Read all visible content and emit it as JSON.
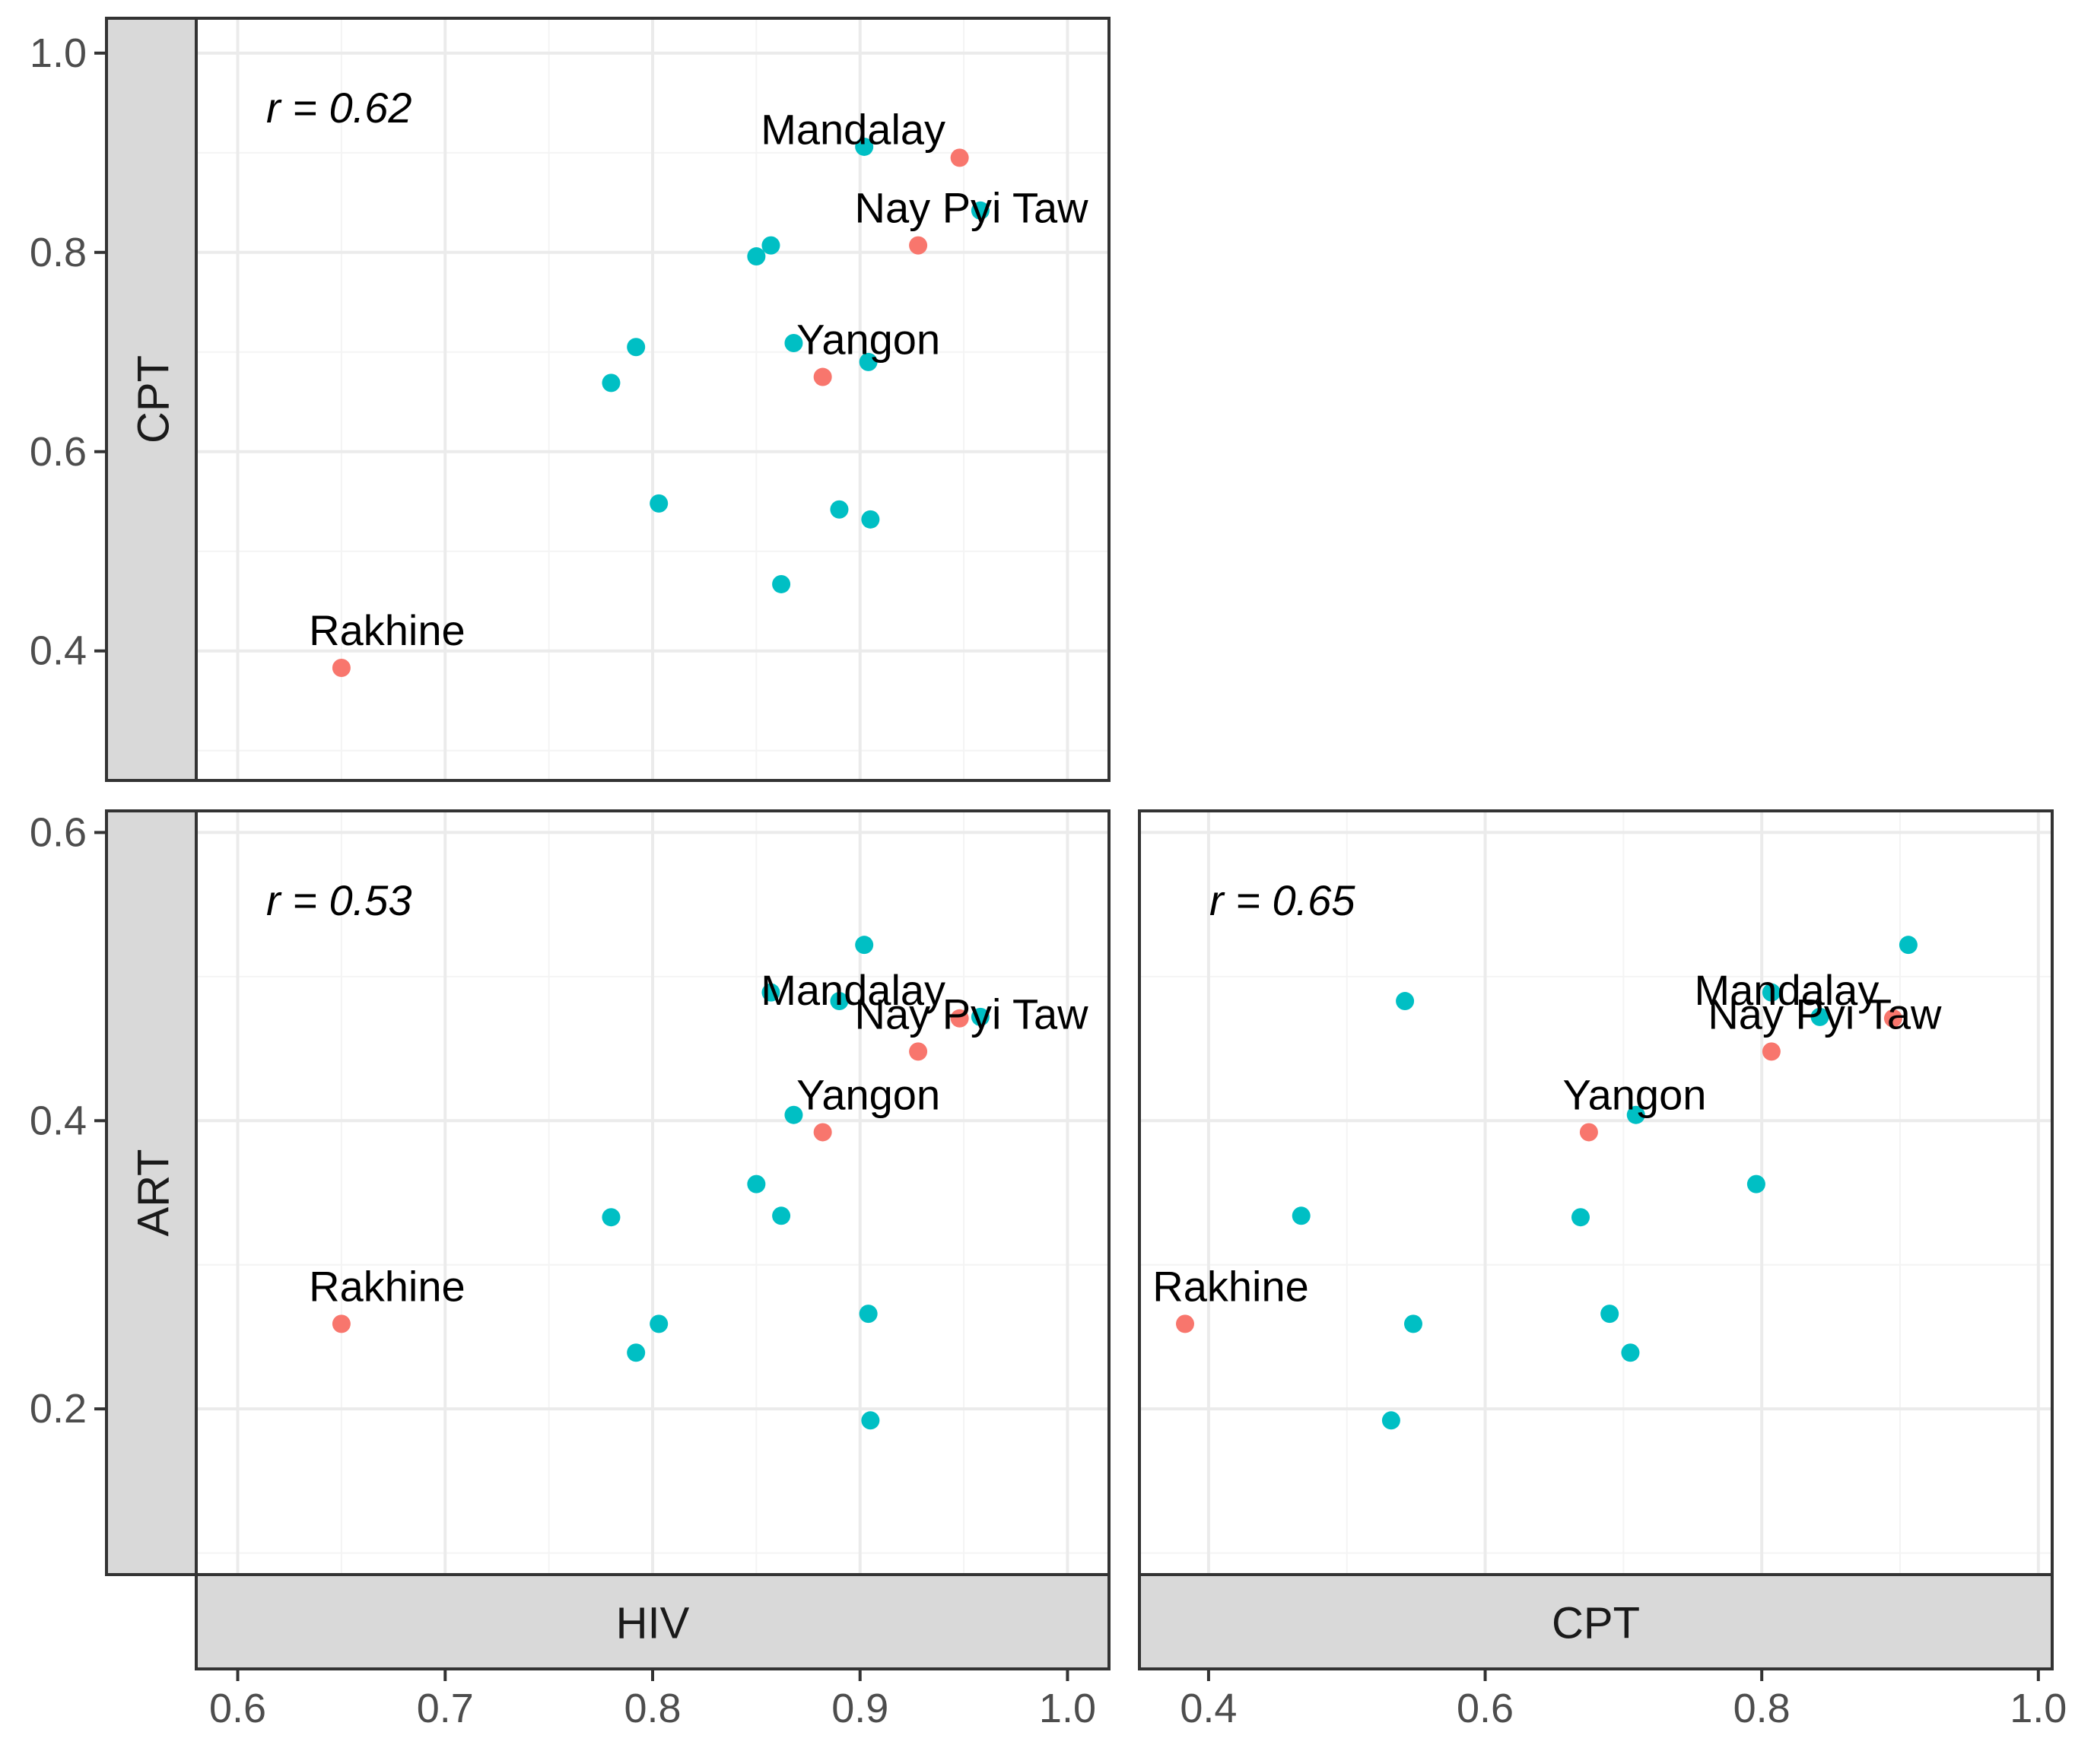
{
  "colors": {
    "labeled": "#F8766D",
    "unlabeled": "#00BFC4"
  },
  "strips": {
    "cpt_row": "CPT",
    "art_row": "ART",
    "hiv_col": "HIV",
    "cpt_col": "CPT"
  },
  "chart_data": [
    {
      "type": "scatter",
      "panel": "HIV vs CPT",
      "xlabel": "HIV",
      "ylabel": "CPT",
      "xlim": [
        0.58,
        1.02
      ],
      "ylim": [
        0.27,
        1.035
      ],
      "x_ticks": [
        "0.6",
        "0.7",
        "0.8",
        "0.9",
        "1.0"
      ],
      "y_ticks": [
        "0.4",
        "0.6",
        "0.8",
        "1.0"
      ],
      "annotation": "r = 0.62",
      "points": [
        {
          "x": 0.902,
          "y": 0.906,
          "group": "unlabeled"
        },
        {
          "x": 0.948,
          "y": 0.895,
          "group": "labeled",
          "label": "Mandalay"
        },
        {
          "x": 0.958,
          "y": 0.842,
          "group": "unlabeled"
        },
        {
          "x": 0.928,
          "y": 0.807,
          "group": "labeled",
          "label": "Nay Pyi Taw"
        },
        {
          "x": 0.857,
          "y": 0.807,
          "group": "unlabeled"
        },
        {
          "x": 0.85,
          "y": 0.796,
          "group": "unlabeled"
        },
        {
          "x": 0.868,
          "y": 0.709,
          "group": "unlabeled"
        },
        {
          "x": 0.904,
          "y": 0.69,
          "group": "unlabeled"
        },
        {
          "x": 0.882,
          "y": 0.675,
          "group": "labeled",
          "label": "Yangon"
        },
        {
          "x": 0.792,
          "y": 0.705,
          "group": "unlabeled"
        },
        {
          "x": 0.78,
          "y": 0.669,
          "group": "unlabeled"
        },
        {
          "x": 0.803,
          "y": 0.548,
          "group": "unlabeled"
        },
        {
          "x": 0.89,
          "y": 0.542,
          "group": "unlabeled"
        },
        {
          "x": 0.905,
          "y": 0.532,
          "group": "unlabeled"
        },
        {
          "x": 0.862,
          "y": 0.467,
          "group": "unlabeled"
        },
        {
          "x": 0.65,
          "y": 0.383,
          "group": "labeled",
          "label": "Rakhine"
        }
      ]
    },
    {
      "type": "scatter",
      "panel": "HIV vs ART",
      "xlabel": "HIV",
      "ylabel": "ART",
      "xlim": [
        0.58,
        1.02
      ],
      "ylim": [
        0.085,
        0.615
      ],
      "x_ticks": [
        "0.6",
        "0.7",
        "0.8",
        "0.9",
        "1.0"
      ],
      "y_ticks": [
        "0.2",
        "0.4",
        "0.6"
      ],
      "annotation": "r = 0.53",
      "points": [
        {
          "x": 0.902,
          "y": 0.522,
          "group": "unlabeled"
        },
        {
          "x": 0.857,
          "y": 0.489,
          "group": "unlabeled"
        },
        {
          "x": 0.89,
          "y": 0.483,
          "group": "unlabeled"
        },
        {
          "x": 0.958,
          "y": 0.472,
          "group": "unlabeled"
        },
        {
          "x": 0.948,
          "y": 0.471,
          "group": "labeled",
          "label": "Mandalay"
        },
        {
          "x": 0.928,
          "y": 0.448,
          "group": "labeled",
          "label": "Nay Pyi Taw"
        },
        {
          "x": 0.868,
          "y": 0.404,
          "group": "unlabeled"
        },
        {
          "x": 0.882,
          "y": 0.392,
          "group": "labeled",
          "label": "Yangon"
        },
        {
          "x": 0.85,
          "y": 0.356,
          "group": "unlabeled"
        },
        {
          "x": 0.78,
          "y": 0.333,
          "group": "unlabeled"
        },
        {
          "x": 0.862,
          "y": 0.334,
          "group": "unlabeled"
        },
        {
          "x": 0.65,
          "y": 0.259,
          "group": "labeled",
          "label": "Rakhine"
        },
        {
          "x": 0.803,
          "y": 0.259,
          "group": "unlabeled"
        },
        {
          "x": 0.904,
          "y": 0.266,
          "group": "unlabeled"
        },
        {
          "x": 0.792,
          "y": 0.239,
          "group": "unlabeled"
        },
        {
          "x": 0.905,
          "y": 0.192,
          "group": "unlabeled"
        }
      ]
    },
    {
      "type": "scatter",
      "panel": "CPT vs ART",
      "xlabel": "CPT",
      "ylabel": "ART",
      "xlim": [
        0.35,
        1.01
      ],
      "ylim": [
        0.085,
        0.615
      ],
      "x_ticks": [
        "0.4",
        "0.6",
        "0.8",
        "1.0"
      ],
      "y_ticks": [
        "0.2",
        "0.4",
        "0.6"
      ],
      "annotation": "r = 0.65",
      "points": [
        {
          "x": 0.906,
          "y": 0.522,
          "group": "unlabeled"
        },
        {
          "x": 0.807,
          "y": 0.489,
          "group": "unlabeled"
        },
        {
          "x": 0.542,
          "y": 0.483,
          "group": "unlabeled"
        },
        {
          "x": 0.842,
          "y": 0.472,
          "group": "unlabeled"
        },
        {
          "x": 0.895,
          "y": 0.471,
          "group": "labeled",
          "label": "Mandalay"
        },
        {
          "x": 0.807,
          "y": 0.448,
          "group": "labeled",
          "label": "Nay Pyi Taw"
        },
        {
          "x": 0.709,
          "y": 0.404,
          "group": "unlabeled"
        },
        {
          "x": 0.675,
          "y": 0.392,
          "group": "labeled",
          "label": "Yangon"
        },
        {
          "x": 0.796,
          "y": 0.356,
          "group": "unlabeled"
        },
        {
          "x": 0.669,
          "y": 0.333,
          "group": "unlabeled"
        },
        {
          "x": 0.467,
          "y": 0.334,
          "group": "unlabeled"
        },
        {
          "x": 0.383,
          "y": 0.259,
          "group": "labeled",
          "label": "Rakhine"
        },
        {
          "x": 0.548,
          "y": 0.259,
          "group": "unlabeled"
        },
        {
          "x": 0.69,
          "y": 0.266,
          "group": "unlabeled"
        },
        {
          "x": 0.705,
          "y": 0.239,
          "group": "unlabeled"
        },
        {
          "x": 0.532,
          "y": 0.192,
          "group": "unlabeled"
        }
      ]
    }
  ]
}
